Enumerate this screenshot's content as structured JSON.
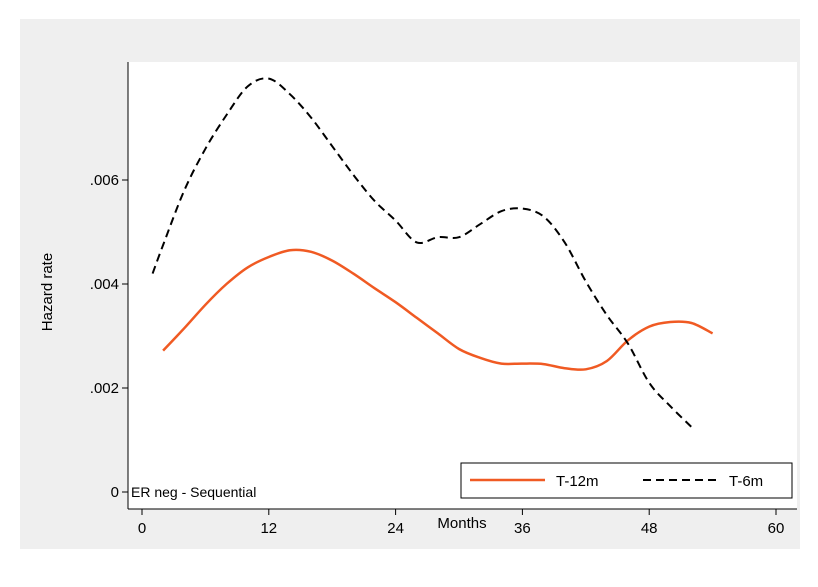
{
  "chart_data": {
    "type": "line",
    "title": "",
    "xlabel": "Months",
    "ylabel": "Hazard rate",
    "xlim": [
      0,
      60
    ],
    "ylim": [
      0,
      0.0079
    ],
    "xticks": [
      0,
      12,
      24,
      36,
      48,
      60
    ],
    "xtick_labels": [
      "0",
      "12",
      "24",
      "36",
      "48",
      "60"
    ],
    "yticks": [
      0,
      0.002,
      0.004,
      0.006
    ],
    "ytick_labels": [
      "0",
      ".002",
      ".004",
      ".006"
    ],
    "annotation": "ER neg - Sequential",
    "legend_position": "bottom-right",
    "grid": false,
    "series": [
      {
        "name": "T-12m",
        "color": "#f05a23",
        "dash": "solid",
        "x": [
          2,
          4,
          6,
          8,
          10,
          12,
          14,
          16,
          18,
          20,
          22,
          24,
          26,
          28,
          30,
          32,
          34,
          36,
          38,
          40,
          42,
          44,
          46,
          48,
          50,
          52,
          54
        ],
        "y": [
          0.00272,
          0.00315,
          0.0036,
          0.004,
          0.00432,
          0.00452,
          0.00465,
          0.00462,
          0.00445,
          0.0042,
          0.00392,
          0.00365,
          0.00335,
          0.00305,
          0.00275,
          0.00258,
          0.00247,
          0.00247,
          0.00246,
          0.00238,
          0.00236,
          0.00252,
          0.00292,
          0.00318,
          0.00327,
          0.00325,
          0.00305
        ]
      },
      {
        "name": "T-6m",
        "color": "#000000",
        "dash": "dashed",
        "x": [
          1,
          2,
          4,
          6,
          8,
          10,
          12,
          14,
          16,
          18,
          20,
          22,
          24,
          26,
          28,
          30,
          32,
          34,
          36,
          38,
          40,
          42,
          44,
          46,
          48,
          50,
          52
        ],
        "y": [
          0.0042,
          0.00475,
          0.0058,
          0.0066,
          0.00725,
          0.0078,
          0.00795,
          0.00765,
          0.0072,
          0.00665,
          0.0061,
          0.0056,
          0.00522,
          0.0048,
          0.0049,
          0.0049,
          0.00515,
          0.0054,
          0.00545,
          0.0053,
          0.0048,
          0.00405,
          0.0034,
          0.00285,
          0.0021,
          0.00165,
          0.00125
        ]
      }
    ]
  }
}
